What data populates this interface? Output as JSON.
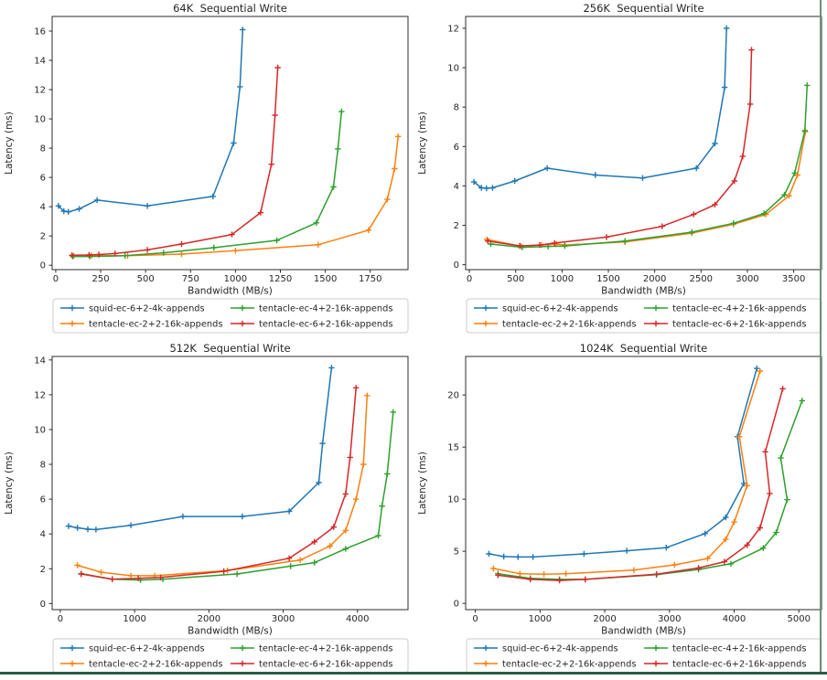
{
  "page": {
    "background": "#ffffff",
    "frame_right_color": "#6d9077",
    "frame_bottom_color": "#2b5d43",
    "text_color": "#262626",
    "spine_color": "#2b2b2b",
    "legend_border_color": "#cccccc"
  },
  "legend": {
    "position": "below-each-chart",
    "columns": 2,
    "entries": [
      {
        "label": "squid-ec-6+2-4k-appends",
        "color": "#1f77b4"
      },
      {
        "label": "tentacle-ec-2+2-16k-appends",
        "color": "#ff7f0e"
      },
      {
        "label": "tentacle-ec-4+2-16k-appends",
        "color": "#2ca02c"
      },
      {
        "label": "tentacle-ec-6+2-16k-appends",
        "color": "#d62728"
      }
    ]
  },
  "chart_data": [
    {
      "type": "line",
      "id": "64k",
      "title": "64K  Sequential Write",
      "xlabel": "Bandwidth (MB/s)",
      "ylabel": "Latency (ms)",
      "xlim": [
        -20,
        1960
      ],
      "ylim": [
        -0.3,
        17.0
      ],
      "xticks": [
        0,
        250,
        500,
        750,
        1000,
        1250,
        1500,
        1750
      ],
      "yticks": [
        0,
        2,
        4,
        6,
        8,
        10,
        12,
        14,
        16
      ],
      "grid": false,
      "marker": "plus",
      "series": [
        {
          "name": "squid-ec-6+2-4k-appends",
          "color": "#1f77b4",
          "points": [
            [
              15,
              4.05
            ],
            [
              45,
              3.7
            ],
            [
              70,
              3.65
            ],
            [
              130,
              3.85
            ],
            [
              230,
              4.45
            ],
            [
              510,
              4.05
            ],
            [
              875,
              4.7
            ],
            [
              990,
              8.35
            ],
            [
              1025,
              12.2
            ],
            [
              1040,
              16.1
            ]
          ]
        },
        {
          "name": "tentacle-ec-2+2-16k-appends",
          "color": "#ff7f0e",
          "points": [
            [
              100,
              0.65
            ],
            [
              200,
              0.66
            ],
            [
              400,
              0.65
            ],
            [
              700,
              0.76
            ],
            [
              1000,
              1.0
            ],
            [
              1460,
              1.4
            ],
            [
              1740,
              2.4
            ],
            [
              1845,
              4.5
            ],
            [
              1885,
              6.6
            ],
            [
              1905,
              8.8
            ]
          ]
        },
        {
          "name": "tentacle-ec-4+2-16k-appends",
          "color": "#2ca02c",
          "points": [
            [
              95,
              0.6
            ],
            [
              190,
              0.6
            ],
            [
              385,
              0.65
            ],
            [
              600,
              0.85
            ],
            [
              880,
              1.2
            ],
            [
              1230,
              1.7
            ],
            [
              1450,
              2.9
            ],
            [
              1545,
              5.35
            ],
            [
              1570,
              7.95
            ],
            [
              1590,
              10.5
            ]
          ]
        },
        {
          "name": "tentacle-ec-6+2-16k-appends",
          "color": "#d62728",
          "points": [
            [
              90,
              0.68
            ],
            [
              185,
              0.7
            ],
            [
              240,
              0.73
            ],
            [
              330,
              0.8
            ],
            [
              510,
              1.05
            ],
            [
              700,
              1.45
            ],
            [
              980,
              2.1
            ],
            [
              1140,
              3.6
            ],
            [
              1200,
              6.9
            ],
            [
              1220,
              10.25
            ],
            [
              1235,
              13.5
            ]
          ]
        }
      ]
    },
    {
      "type": "line",
      "id": "256k",
      "title": "256K  Sequential Write",
      "xlabel": "Bandwidth (MB/s)",
      "ylabel": "Latency (ms)",
      "xlim": [
        -40,
        3800
      ],
      "ylim": [
        -0.25,
        12.6
      ],
      "xticks": [
        0,
        500,
        1000,
        1500,
        2000,
        2500,
        3000,
        3500
      ],
      "yticks": [
        0,
        2,
        4,
        6,
        8,
        10,
        12
      ],
      "grid": false,
      "marker": "plus",
      "series": [
        {
          "name": "squid-ec-6+2-4k-appends",
          "color": "#1f77b4",
          "points": [
            [
              50,
              4.2
            ],
            [
              130,
              3.9
            ],
            [
              185,
              3.88
            ],
            [
              250,
              3.9
            ],
            [
              490,
              4.25
            ],
            [
              840,
              4.9
            ],
            [
              1360,
              4.55
            ],
            [
              1870,
              4.4
            ],
            [
              2450,
              4.9
            ],
            [
              2650,
              6.15
            ],
            [
              2755,
              9.0
            ],
            [
              2775,
              12.0
            ]
          ]
        },
        {
          "name": "tentacle-ec-2+2-16k-appends",
          "color": "#ff7f0e",
          "points": [
            [
              190,
              1.28
            ],
            [
              540,
              0.95
            ],
            [
              780,
              1.0
            ],
            [
              940,
              1.05
            ],
            [
              1030,
              1.0
            ],
            [
              1680,
              1.15
            ],
            [
              2400,
              1.6
            ],
            [
              2850,
              2.05
            ],
            [
              3200,
              2.55
            ],
            [
              3450,
              3.5
            ],
            [
              3540,
              4.55
            ],
            [
              3625,
              6.75
            ]
          ]
        },
        {
          "name": "tentacle-ec-4+2-16k-appends",
          "color": "#2ca02c",
          "points": [
            [
              230,
              1.05
            ],
            [
              570,
              0.88
            ],
            [
              850,
              0.93
            ],
            [
              1030,
              0.95
            ],
            [
              1680,
              1.2
            ],
            [
              2400,
              1.65
            ],
            [
              2850,
              2.1
            ],
            [
              3180,
              2.6
            ],
            [
              3400,
              3.55
            ],
            [
              3510,
              4.65
            ],
            [
              3620,
              6.8
            ],
            [
              3645,
              9.1
            ]
          ]
        },
        {
          "name": "tentacle-ec-6+2-16k-appends",
          "color": "#d62728",
          "points": [
            [
              200,
              1.2
            ],
            [
              550,
              0.95
            ],
            [
              760,
              1.0
            ],
            [
              920,
              1.1
            ],
            [
              1480,
              1.4
            ],
            [
              2080,
              1.95
            ],
            [
              2420,
              2.55
            ],
            [
              2650,
              3.05
            ],
            [
              2860,
              4.25
            ],
            [
              2950,
              5.5
            ],
            [
              3030,
              8.15
            ],
            [
              3045,
              10.9
            ]
          ]
        }
      ]
    },
    {
      "type": "line",
      "id": "512k",
      "title": "512K  Sequential Write",
      "xlabel": "Bandwidth (MB/s)",
      "ylabel": "Latency (ms)",
      "xlim": [
        -110,
        4680
      ],
      "ylim": [
        -0.35,
        14.2
      ],
      "xticks": [
        0,
        1000,
        2000,
        3000,
        4000
      ],
      "yticks": [
        0,
        2,
        4,
        6,
        8,
        10,
        12,
        14
      ],
      "grid": false,
      "marker": "plus",
      "series": [
        {
          "name": "squid-ec-6+2-4k-appends",
          "color": "#1f77b4",
          "points": [
            [
              110,
              4.45
            ],
            [
              230,
              4.35
            ],
            [
              370,
              4.27
            ],
            [
              480,
              4.25
            ],
            [
              950,
              4.5
            ],
            [
              1650,
              5.0
            ],
            [
              2450,
              5.0
            ],
            [
              3080,
              5.3
            ],
            [
              3480,
              6.95
            ],
            [
              3530,
              9.2
            ],
            [
              3650,
              13.55
            ]
          ]
        },
        {
          "name": "tentacle-ec-2+2-16k-appends",
          "color": "#ff7f0e",
          "points": [
            [
              230,
              2.2
            ],
            [
              550,
              1.8
            ],
            [
              950,
              1.6
            ],
            [
              1270,
              1.6
            ],
            [
              2250,
              1.9
            ],
            [
              3230,
              2.5
            ],
            [
              3630,
              3.3
            ],
            [
              3840,
              4.2
            ],
            [
              3980,
              6.0
            ],
            [
              4080,
              8.0
            ],
            [
              4130,
              11.95
            ]
          ]
        },
        {
          "name": "tentacle-ec-4+2-16k-appends",
          "color": "#2ca02c",
          "points": [
            [
              280,
              1.72
            ],
            [
              700,
              1.4
            ],
            [
              1080,
              1.35
            ],
            [
              1380,
              1.4
            ],
            [
              2380,
              1.7
            ],
            [
              3100,
              2.15
            ],
            [
              3420,
              2.35
            ],
            [
              3840,
              3.15
            ],
            [
              4280,
              3.9
            ],
            [
              4330,
              5.6
            ],
            [
              4400,
              7.45
            ],
            [
              4480,
              11.0
            ]
          ]
        },
        {
          "name": "tentacle-ec-6+2-16k-appends",
          "color": "#d62728",
          "points": [
            [
              280,
              1.7
            ],
            [
              700,
              1.4
            ],
            [
              1050,
              1.45
            ],
            [
              1350,
              1.5
            ],
            [
              2200,
              1.85
            ],
            [
              3080,
              2.6
            ],
            [
              3420,
              3.55
            ],
            [
              3680,
              4.4
            ],
            [
              3840,
              6.3
            ],
            [
              3900,
              8.4
            ],
            [
              3980,
              12.4
            ]
          ]
        }
      ]
    },
    {
      "type": "line",
      "id": "1024k",
      "title": "1024K  Sequential Write",
      "xlabel": "Bandwidth (MB/s)",
      "ylabel": "Latency (ms)",
      "xlim": [
        -150,
        5350
      ],
      "ylim": [
        -0.6,
        23.7
      ],
      "xticks": [
        0,
        1000,
        2000,
        3000,
        4000,
        5000
      ],
      "yticks": [
        0,
        5,
        10,
        15,
        20
      ],
      "grid": false,
      "marker": "plus",
      "series": [
        {
          "name": "squid-ec-6+2-4k-appends",
          "color": "#1f77b4",
          "points": [
            [
              210,
              4.75
            ],
            [
              440,
              4.5
            ],
            [
              660,
              4.45
            ],
            [
              890,
              4.45
            ],
            [
              1680,
              4.75
            ],
            [
              2340,
              5.05
            ],
            [
              2950,
              5.35
            ],
            [
              3550,
              6.7
            ],
            [
              3870,
              8.25
            ],
            [
              4150,
              11.5
            ],
            [
              4050,
              16.0
            ],
            [
              4350,
              22.55
            ]
          ]
        },
        {
          "name": "tentacle-ec-2+2-16k-appends",
          "color": "#ff7f0e",
          "points": [
            [
              280,
              3.35
            ],
            [
              690,
              2.85
            ],
            [
              1060,
              2.8
            ],
            [
              1400,
              2.85
            ],
            [
              2450,
              3.2
            ],
            [
              3080,
              3.7
            ],
            [
              3590,
              4.3
            ],
            [
              3870,
              6.15
            ],
            [
              4000,
              7.8
            ],
            [
              4200,
              11.3
            ],
            [
              4080,
              16.0
            ],
            [
              4400,
              22.3
            ]
          ]
        },
        {
          "name": "tentacle-ec-4+2-16k-appends",
          "color": "#2ca02c",
          "points": [
            [
              350,
              2.85
            ],
            [
              850,
              2.4
            ],
            [
              1300,
              2.3
            ],
            [
              1700,
              2.3
            ],
            [
              2800,
              2.75
            ],
            [
              3450,
              3.25
            ],
            [
              3950,
              3.8
            ],
            [
              4450,
              5.3
            ],
            [
              4650,
              6.8
            ],
            [
              4820,
              9.95
            ],
            [
              4720,
              13.95
            ],
            [
              5050,
              19.45
            ]
          ]
        },
        {
          "name": "tentacle-ec-6+2-16k-appends",
          "color": "#d62728",
          "points": [
            [
              350,
              2.7
            ],
            [
              850,
              2.3
            ],
            [
              1300,
              2.2
            ],
            [
              1700,
              2.3
            ],
            [
              2800,
              2.8
            ],
            [
              3450,
              3.4
            ],
            [
              3850,
              4.0
            ],
            [
              4200,
              5.6
            ],
            [
              4400,
              7.25
            ],
            [
              4550,
              10.55
            ],
            [
              4480,
              14.55
            ],
            [
              4750,
              20.6
            ]
          ]
        }
      ]
    }
  ]
}
